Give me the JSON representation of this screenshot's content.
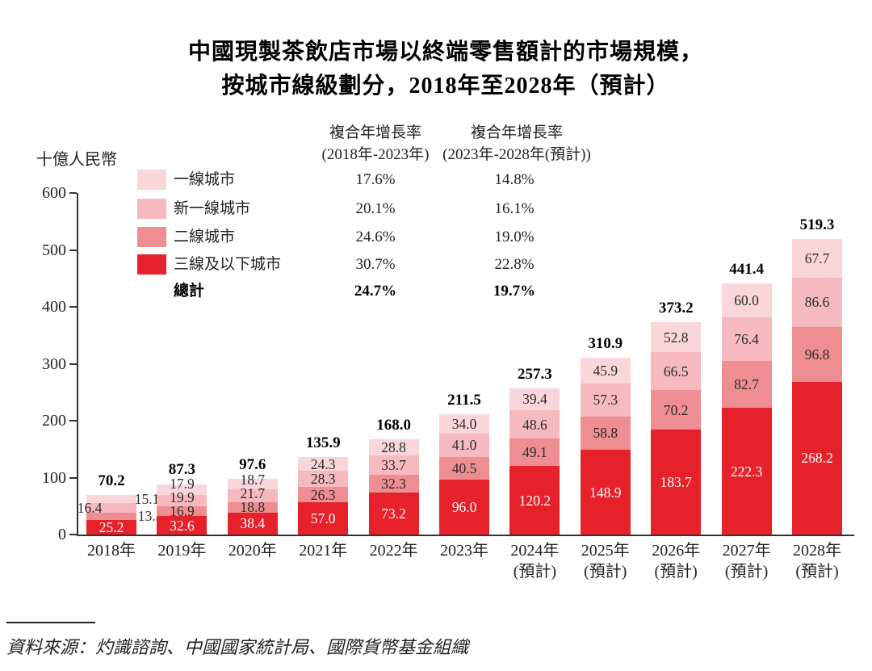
{
  "title": {
    "line1": "中國現製茶飲店市場以終端零售額計的市場規模，",
    "line2": "按城市線級劃分，2018年至2028年（預計）"
  },
  "cagr_table": {
    "col1_header_line1": "複合年增長率",
    "col1_header_line2": "(2018年-2023年)",
    "col2_header_line1": "複合年增長率",
    "col2_header_line2": "(2023年-2028年(預計))"
  },
  "source_note": "資料來源：灼識諮詢、中國國家統計局、國際貨幣基金組織",
  "chart_data": {
    "type": "bar",
    "stacked": true,
    "unit_label": "十億人民幣",
    "categories": [
      "2018年",
      "2019年",
      "2020年",
      "2021年",
      "2022年",
      "2023年",
      "2024年",
      "2025年",
      "2026年",
      "2027年",
      "2028年"
    ],
    "category_sublabels": [
      "",
      "",
      "",
      "",
      "",
      "",
      "(預計)",
      "(預計)",
      "(預計)",
      "(預計)",
      "(預計)"
    ],
    "series": [
      {
        "name": "一線城市",
        "color": "#f8d6d9",
        "cagr_2018_2023": "17.6%",
        "cagr_2023_2028": "14.8%",
        "values": [
          15.1,
          17.9,
          18.7,
          24.3,
          28.8,
          34.0,
          39.4,
          45.9,
          52.8,
          60.0,
          67.7
        ]
      },
      {
        "name": "新一線城市",
        "color": "#f5b9bf",
        "cagr_2018_2023": "20.1%",
        "cagr_2023_2028": "16.1%",
        "values": [
          16.4,
          19.9,
          21.7,
          28.3,
          33.7,
          41.0,
          48.6,
          57.3,
          66.5,
          76.4,
          86.6
        ]
      },
      {
        "name": "二線城市",
        "color": "#ee8d92",
        "cagr_2018_2023": "24.6%",
        "cagr_2023_2028": "19.0%",
        "values": [
          13.5,
          16.9,
          18.8,
          26.3,
          32.3,
          40.5,
          49.1,
          58.8,
          70.2,
          82.7,
          96.8
        ]
      },
      {
        "name": "三線及以下城市",
        "color": "#e6212a",
        "cagr_2018_2023": "30.7%",
        "cagr_2023_2028": "22.8%",
        "values": [
          25.2,
          32.6,
          38.4,
          57.0,
          73.2,
          96.0,
          120.2,
          148.9,
          183.7,
          222.3,
          268.2
        ]
      }
    ],
    "total_row": {
      "name": "總計",
      "cagr_2018_2023": "24.7%",
      "cagr_2023_2028": "19.7%"
    },
    "totals": [
      70.2,
      87.3,
      97.6,
      135.9,
      168.0,
      211.5,
      257.3,
      310.9,
      373.2,
      441.4,
      519.3
    ],
    "ylim": [
      0,
      600
    ],
    "yticks": [
      0,
      100,
      200,
      300,
      400,
      500,
      600
    ],
    "grid": false,
    "legend_position": "upper-left",
    "colors": {
      "axis": "#333333",
      "total_label": "#000000",
      "segment_label": "#2c2c2c",
      "on_red_label": "#ffffff"
    }
  }
}
